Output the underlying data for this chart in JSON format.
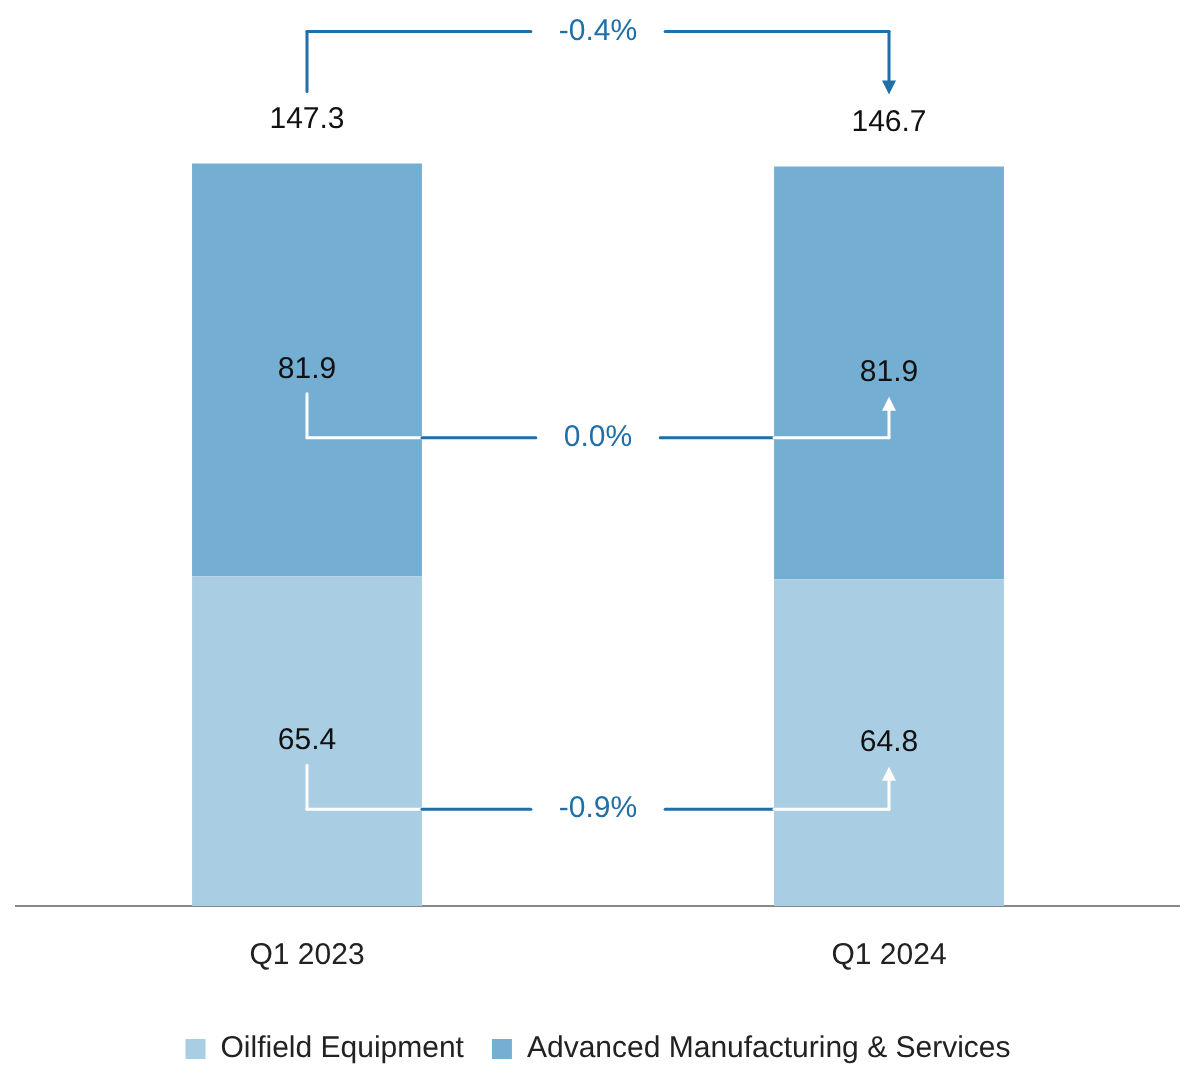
{
  "chart_data": {
    "type": "bar",
    "stacked": true,
    "categories": [
      "Q1 2023",
      "Q1 2024"
    ],
    "series": [
      {
        "name": "Oilfield Equipment",
        "color": "#a9cde3",
        "values": [
          65.4,
          64.8
        ]
      },
      {
        "name": "Advanced Manufacturing & Services",
        "color": "#74aed2",
        "values": [
          81.9,
          81.9
        ]
      }
    ],
    "totals": [
      "147.3",
      "146.7"
    ],
    "data_labels": true,
    "legend": "bottom",
    "grid": false,
    "annotations": [
      "-0.4%",
      "0.0%",
      "-0.9%"
    ]
  }
}
